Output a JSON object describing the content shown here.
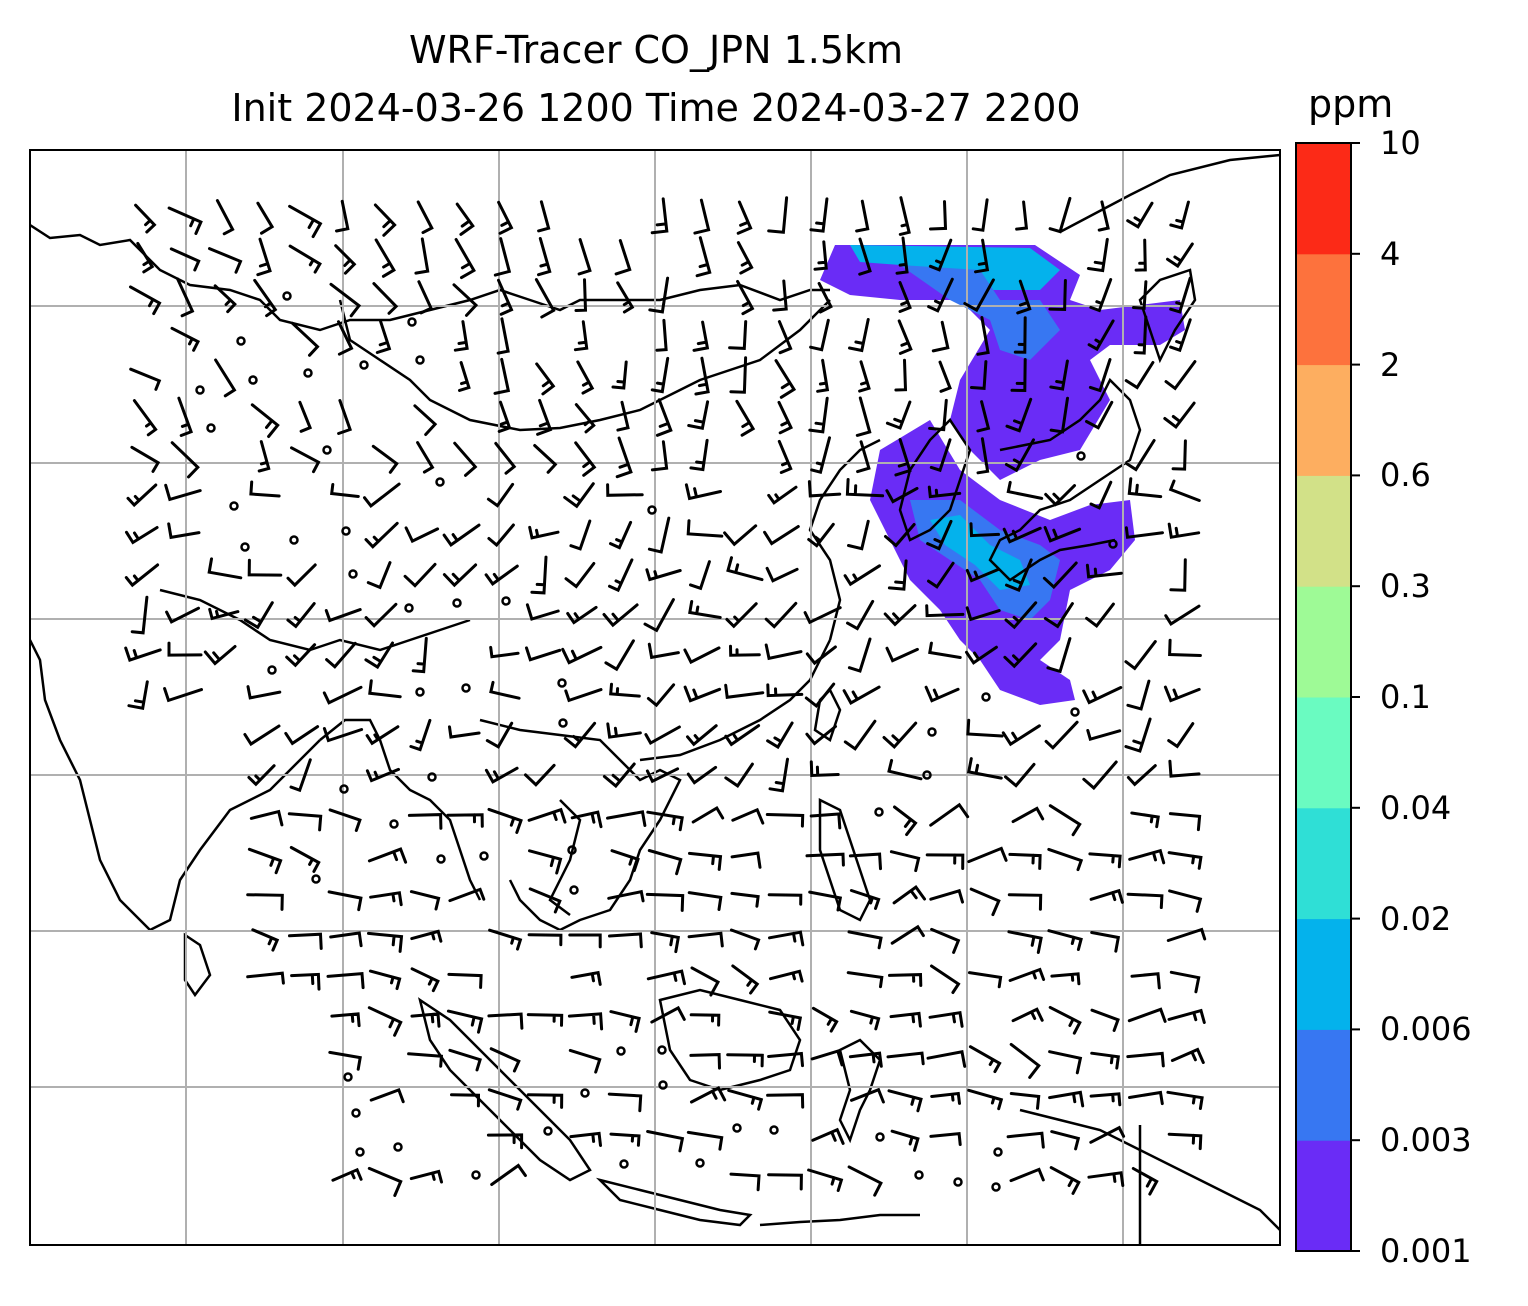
{
  "title": {
    "line1": "WRF-Tracer CO_JPN 1.5km",
    "line2": "Init 2024-03-26 1200 Time 2024-03-27 2200"
  },
  "colorbar": {
    "unit": "ppm",
    "levels": [
      "0.001",
      "0.003",
      "0.006",
      "0.02",
      "0.04",
      "0.1",
      "0.3",
      "0.6",
      "2",
      "4",
      "10"
    ],
    "colors": [
      "#6a2cf6",
      "#3777f2",
      "#04b2ec",
      "#2fdfd6",
      "#6afbc1",
      "#9efa96",
      "#d2e188",
      "#fdae60",
      "#fd723d",
      "#fc2a17"
    ]
  },
  "map": {
    "plume_colors": [
      "#6a2cf6",
      "#3777f2",
      "#04b2ec"
    ],
    "gridline_color": "#b0b0b0"
  }
}
